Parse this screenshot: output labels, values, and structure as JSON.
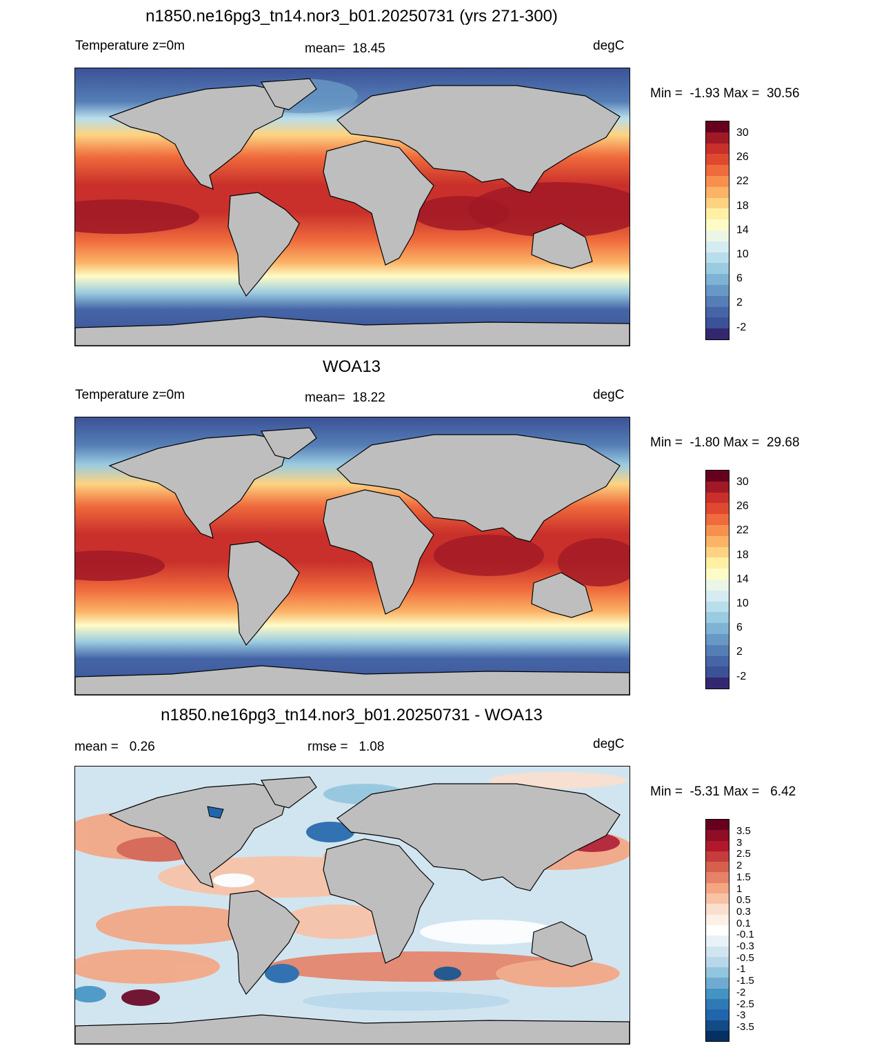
{
  "panels": [
    {
      "title": "n1850.ne16pg3_tn14.nor3_b01.20250731 (yrs 271-300)",
      "left_label": "Temperature z=0m",
      "center_label": "mean=  18.45",
      "right_label": "degC",
      "minmax": "Min =  -1.93 Max =  30.56",
      "colorbar": {
        "colors": [
          "#67001f",
          "#a11926",
          "#c9302b",
          "#e0492f",
          "#ef6a3c",
          "#f7904f",
          "#fbb366",
          "#fdd381",
          "#fff0a4",
          "#fefcc6",
          "#ebf6e6",
          "#d5ecf2",
          "#b8deec",
          "#9acbe1",
          "#7eb3d5",
          "#6898c5",
          "#557eb6",
          "#4565a6",
          "#3b5297",
          "#332870"
        ],
        "labels": [
          "30",
          "26",
          "22",
          "18",
          "14",
          "10",
          "6",
          "2",
          "-2"
        ]
      }
    },
    {
      "title": "WOA13",
      "left_label": "Temperature z=0m",
      "center_label": "mean=  18.22",
      "right_label": "degC",
      "minmax": "Min =  -1.80 Max =  29.68",
      "colorbar": {
        "colors": [
          "#67001f",
          "#a11926",
          "#c9302b",
          "#e0492f",
          "#ef6a3c",
          "#f7904f",
          "#fbb366",
          "#fdd381",
          "#fff0a4",
          "#fefcc6",
          "#ebf6e6",
          "#d5ecf2",
          "#b8deec",
          "#9acbe1",
          "#7eb3d5",
          "#6898c5",
          "#557eb6",
          "#4565a6",
          "#3b5297",
          "#332870"
        ],
        "labels": [
          "30",
          "26",
          "22",
          "18",
          "14",
          "10",
          "6",
          "2",
          "-2"
        ]
      }
    },
    {
      "title": "n1850.ne16pg3_tn14.nor3_b01.20250731 - WOA13",
      "left_label": "mean =   0.26",
      "center_label": "rmse =   1.08",
      "right_label": "degC",
      "minmax": "Min =  -5.31 Max =   6.42",
      "colorbar": {
        "colors": [
          "#67001f",
          "#8f0d26",
          "#b2182b",
          "#c43c3c",
          "#d6604d",
          "#e58268",
          "#f4a582",
          "#f8c2a5",
          "#fbdfcd",
          "#fdf0e8",
          "#ffffff",
          "#e8f2f8",
          "#d1e5f0",
          "#b8d8ea",
          "#92c5de",
          "#6fabd1",
          "#4393c3",
          "#2f79b5",
          "#2166ac",
          "#124b86",
          "#053061"
        ],
        "labels": [
          "3.5",
          "3",
          "2.5",
          "2",
          "1.5",
          "1",
          "0.5",
          "0.3",
          "0.1",
          "-0.1",
          "-0.3",
          "-0.5",
          "-1",
          "-1.5",
          "-2",
          "-2.5",
          "-3",
          "-3.5"
        ]
      }
    }
  ],
  "colors": {
    "land": "#bebebe",
    "coast": "#000000"
  }
}
